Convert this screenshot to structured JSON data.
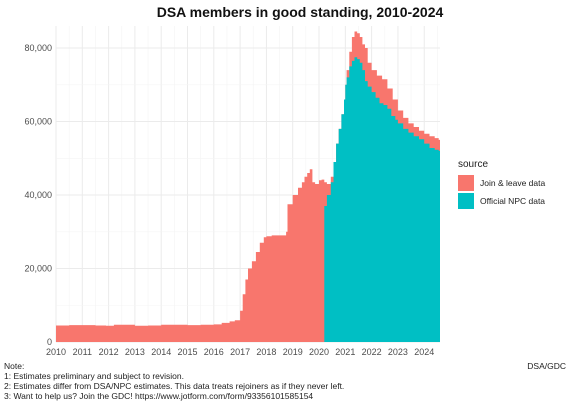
{
  "chart_data": {
    "type": "area",
    "title": "DSA members in good standing, 2010-2024",
    "xlabel": "",
    "ylabel": "",
    "x_tick_labels": [
      "2010",
      "2011",
      "2012",
      "2013",
      "2014",
      "2015",
      "2016",
      "2017",
      "2018",
      "2019",
      "2020",
      "2021",
      "2022",
      "2023",
      "2024"
    ],
    "y_tick_labels": [
      "0",
      "20,000",
      "40,000",
      "60,000",
      "80,000"
    ],
    "y_ticks": [
      0,
      20000,
      40000,
      60000,
      80000
    ],
    "xlim": [
      2010,
      2024.6
    ],
    "ylim": [
      0,
      86000
    ],
    "grid": true,
    "legend": {
      "title": "source",
      "position": "right",
      "entries": [
        {
          "label": "Join & leave data",
          "color": "#F8766D"
        },
        {
          "label": "Official NPC data",
          "color": "#00BFC4"
        }
      ]
    },
    "series": [
      {
        "name": "Join & leave data",
        "color": "#F8766D",
        "x": [
          2010.0,
          2010.5,
          2011.0,
          2011.5,
          2011.9,
          2012.2,
          2012.6,
          2013.0,
          2013.5,
          2014.0,
          2014.5,
          2015.0,
          2015.5,
          2016.0,
          2016.3,
          2016.6,
          2016.8,
          2017.0,
          2017.1,
          2017.2,
          2017.3,
          2017.45,
          2017.6,
          2017.75,
          2017.9,
          2018.0,
          2018.2,
          2018.5,
          2018.75,
          2018.8,
          2019.0,
          2019.2,
          2019.35,
          2019.45,
          2019.55,
          2019.65,
          2019.75,
          2019.85,
          2020.0,
          2020.1,
          2020.2,
          2020.3,
          2020.45,
          2020.55,
          2020.65,
          2020.75,
          2020.85,
          2020.95,
          2021.0,
          2021.05,
          2021.15,
          2021.25,
          2021.35,
          2021.45,
          2021.55,
          2021.65,
          2021.75,
          2021.85,
          2022.0,
          2022.2,
          2022.4,
          2022.6,
          2022.8,
          2023.0,
          2023.2,
          2023.4,
          2023.6,
          2023.8,
          2024.0,
          2024.2,
          2024.4,
          2024.55
        ],
        "y": [
          4500,
          4600,
          4600,
          4500,
          4400,
          4700,
          4700,
          4400,
          4500,
          4700,
          4700,
          4600,
          4700,
          4800,
          5200,
          5600,
          5900,
          8500,
          13000,
          17000,
          20000,
          22000,
          24500,
          27000,
          28500,
          28800,
          29000,
          29000,
          30000,
          37500,
          40000,
          42000,
          43500,
          45000,
          46000,
          47000,
          43500,
          43000,
          44000,
          44200,
          43500,
          43000,
          45000,
          49000,
          54000,
          58000,
          62000,
          66000,
          70000,
          74000,
          79000,
          83000,
          84500,
          84000,
          83000,
          81000,
          80000,
          76000,
          74000,
          72500,
          71500,
          69000,
          66000,
          63000,
          61000,
          59500,
          58500,
          57500,
          56700,
          56000,
          55500,
          55000
        ]
      },
      {
        "name": "Official NPC data",
        "color": "#00BFC4",
        "x": [
          2020.2,
          2020.3,
          2020.45,
          2020.55,
          2020.65,
          2020.75,
          2020.85,
          2020.95,
          2021.0,
          2021.05,
          2021.15,
          2021.25,
          2021.35,
          2021.45,
          2021.55,
          2021.65,
          2021.75,
          2021.85,
          2022.0,
          2022.15,
          2022.3,
          2022.45,
          2022.6,
          2022.75,
          2022.9,
          2023.0,
          2023.2,
          2023.4,
          2023.6,
          2023.8,
          2024.0,
          2024.2,
          2024.4,
          2024.55
        ],
        "y": [
          37000,
          40000,
          43500,
          49000,
          54000,
          58000,
          62000,
          66000,
          70000,
          72000,
          75000,
          76500,
          77500,
          77000,
          76000,
          74000,
          71000,
          69500,
          68000,
          66500,
          65000,
          64500,
          63500,
          61500,
          60500,
          59500,
          58000,
          57000,
          56000,
          55200,
          54000,
          52800,
          52300,
          52000
        ]
      }
    ],
    "notes": [
      "Note:",
      "1: Estimates preliminary and subject to revision.",
      "2: Estimates differ from DSA/NPC estimates. This data treats rejoiners as if they never left.",
      "3: Want to help us? Join the GDC! https://www.jotform.com/form/93356101585154"
    ],
    "source_credit": "DSA/GDC"
  }
}
